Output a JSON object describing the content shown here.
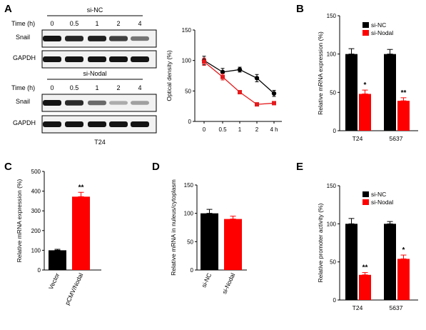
{
  "panels": {
    "A": {
      "letter": "A",
      "blot_top": {
        "group": "si-NC",
        "time_label": "Time (h)",
        "times": [
          "0",
          "0.5",
          "1",
          "2",
          "4"
        ],
        "rows": [
          "Snail",
          "GAPDH"
        ],
        "snail_intensity": [
          1.0,
          0.92,
          0.95,
          0.8,
          0.55
        ]
      },
      "blot_bottom": {
        "group": "si-Nodal",
        "time_label": "Time (h)",
        "times": [
          "0",
          "0.5",
          "1",
          "2",
          "4"
        ],
        "rows": [
          "Snail",
          "GAPDH"
        ],
        "snail_intensity": [
          1.0,
          0.9,
          0.6,
          0.3,
          0.35
        ],
        "cell_line": "T24"
      }
    },
    "B": {
      "letter": "B"
    },
    "C": {
      "letter": "C"
    },
    "D": {
      "letter": "D"
    },
    "E": {
      "letter": "E"
    }
  },
  "chart_data": [
    {
      "id": "A-line",
      "type": "line",
      "categories": [
        "0",
        "0.5",
        "1",
        "2",
        "4 h"
      ],
      "ylabel": "Optical density (%)",
      "ylim": [
        0,
        150
      ],
      "yticks": [
        0,
        50,
        100,
        150
      ],
      "series": [
        {
          "color": "#000000",
          "values": [
            100,
            81,
            85,
            71,
            46
          ],
          "errors": [
            7,
            6,
            4,
            6,
            5
          ]
        },
        {
          "color": "#e41a1c",
          "values": [
            98,
            73,
            48,
            28,
            30
          ],
          "errors": [
            6,
            5,
            2,
            2,
            2
          ]
        }
      ]
    },
    {
      "id": "B-bar",
      "type": "bar",
      "categories": [
        "T24",
        "5637"
      ],
      "ylabel": "Relative mRNA expression (%)",
      "ylim": [
        0,
        150
      ],
      "yticks": [
        0,
        50,
        100,
        150
      ],
      "legend": [
        "si-NC",
        "si-Nodal"
      ],
      "legend_position": "top-right",
      "series": [
        {
          "name": "si-NC",
          "color": "#000000",
          "values": [
            100,
            100
          ],
          "errors": [
            7,
            6
          ]
        },
        {
          "name": "si-Nodal",
          "color": "#ff0000",
          "values": [
            48,
            39
          ],
          "errors": [
            5,
            4
          ]
        }
      ],
      "annotations": [
        "*",
        "**"
      ]
    },
    {
      "id": "C-bar",
      "type": "bar",
      "categories": [
        "Vector",
        "pCMV/Nodal"
      ],
      "ylabel": "Relative mRNA expression (%)",
      "ylim": [
        0,
        500
      ],
      "yticks": [
        0,
        100,
        200,
        300,
        400,
        500
      ],
      "colors": [
        "#000000",
        "#ff0000"
      ],
      "values": [
        100,
        372
      ],
      "errors": [
        5,
        22
      ],
      "annotations": [
        "",
        "**"
      ]
    },
    {
      "id": "D-bar",
      "type": "bar",
      "categories": [
        "si-NC",
        "si-Nodal"
      ],
      "ylabel": "Relative mRNA in nuleus/cytoplasm",
      "ylim": [
        0,
        150
      ],
      "yticks": [
        0,
        50,
        100,
        150
      ],
      "colors": [
        "#000000",
        "#ff0000"
      ],
      "values": [
        100,
        90
      ],
      "errors": [
        7,
        5
      ]
    },
    {
      "id": "E-bar",
      "type": "bar",
      "categories": [
        "T24",
        "5637"
      ],
      "ylabel": "Relative promoter activity (%)",
      "ylim": [
        0,
        150
      ],
      "yticks": [
        0,
        50,
        100,
        150
      ],
      "legend": [
        "si-NC",
        "si-Nodal"
      ],
      "legend_position": "top-right",
      "series": [
        {
          "name": "si-NC",
          "color": "#000000",
          "values": [
            100,
            100
          ],
          "errors": [
            7,
            3
          ]
        },
        {
          "name": "si-Nodal",
          "color": "#ff0000",
          "values": [
            33,
            54
          ],
          "errors": [
            3,
            5
          ]
        }
      ],
      "annotations": [
        "**",
        "*"
      ]
    }
  ]
}
